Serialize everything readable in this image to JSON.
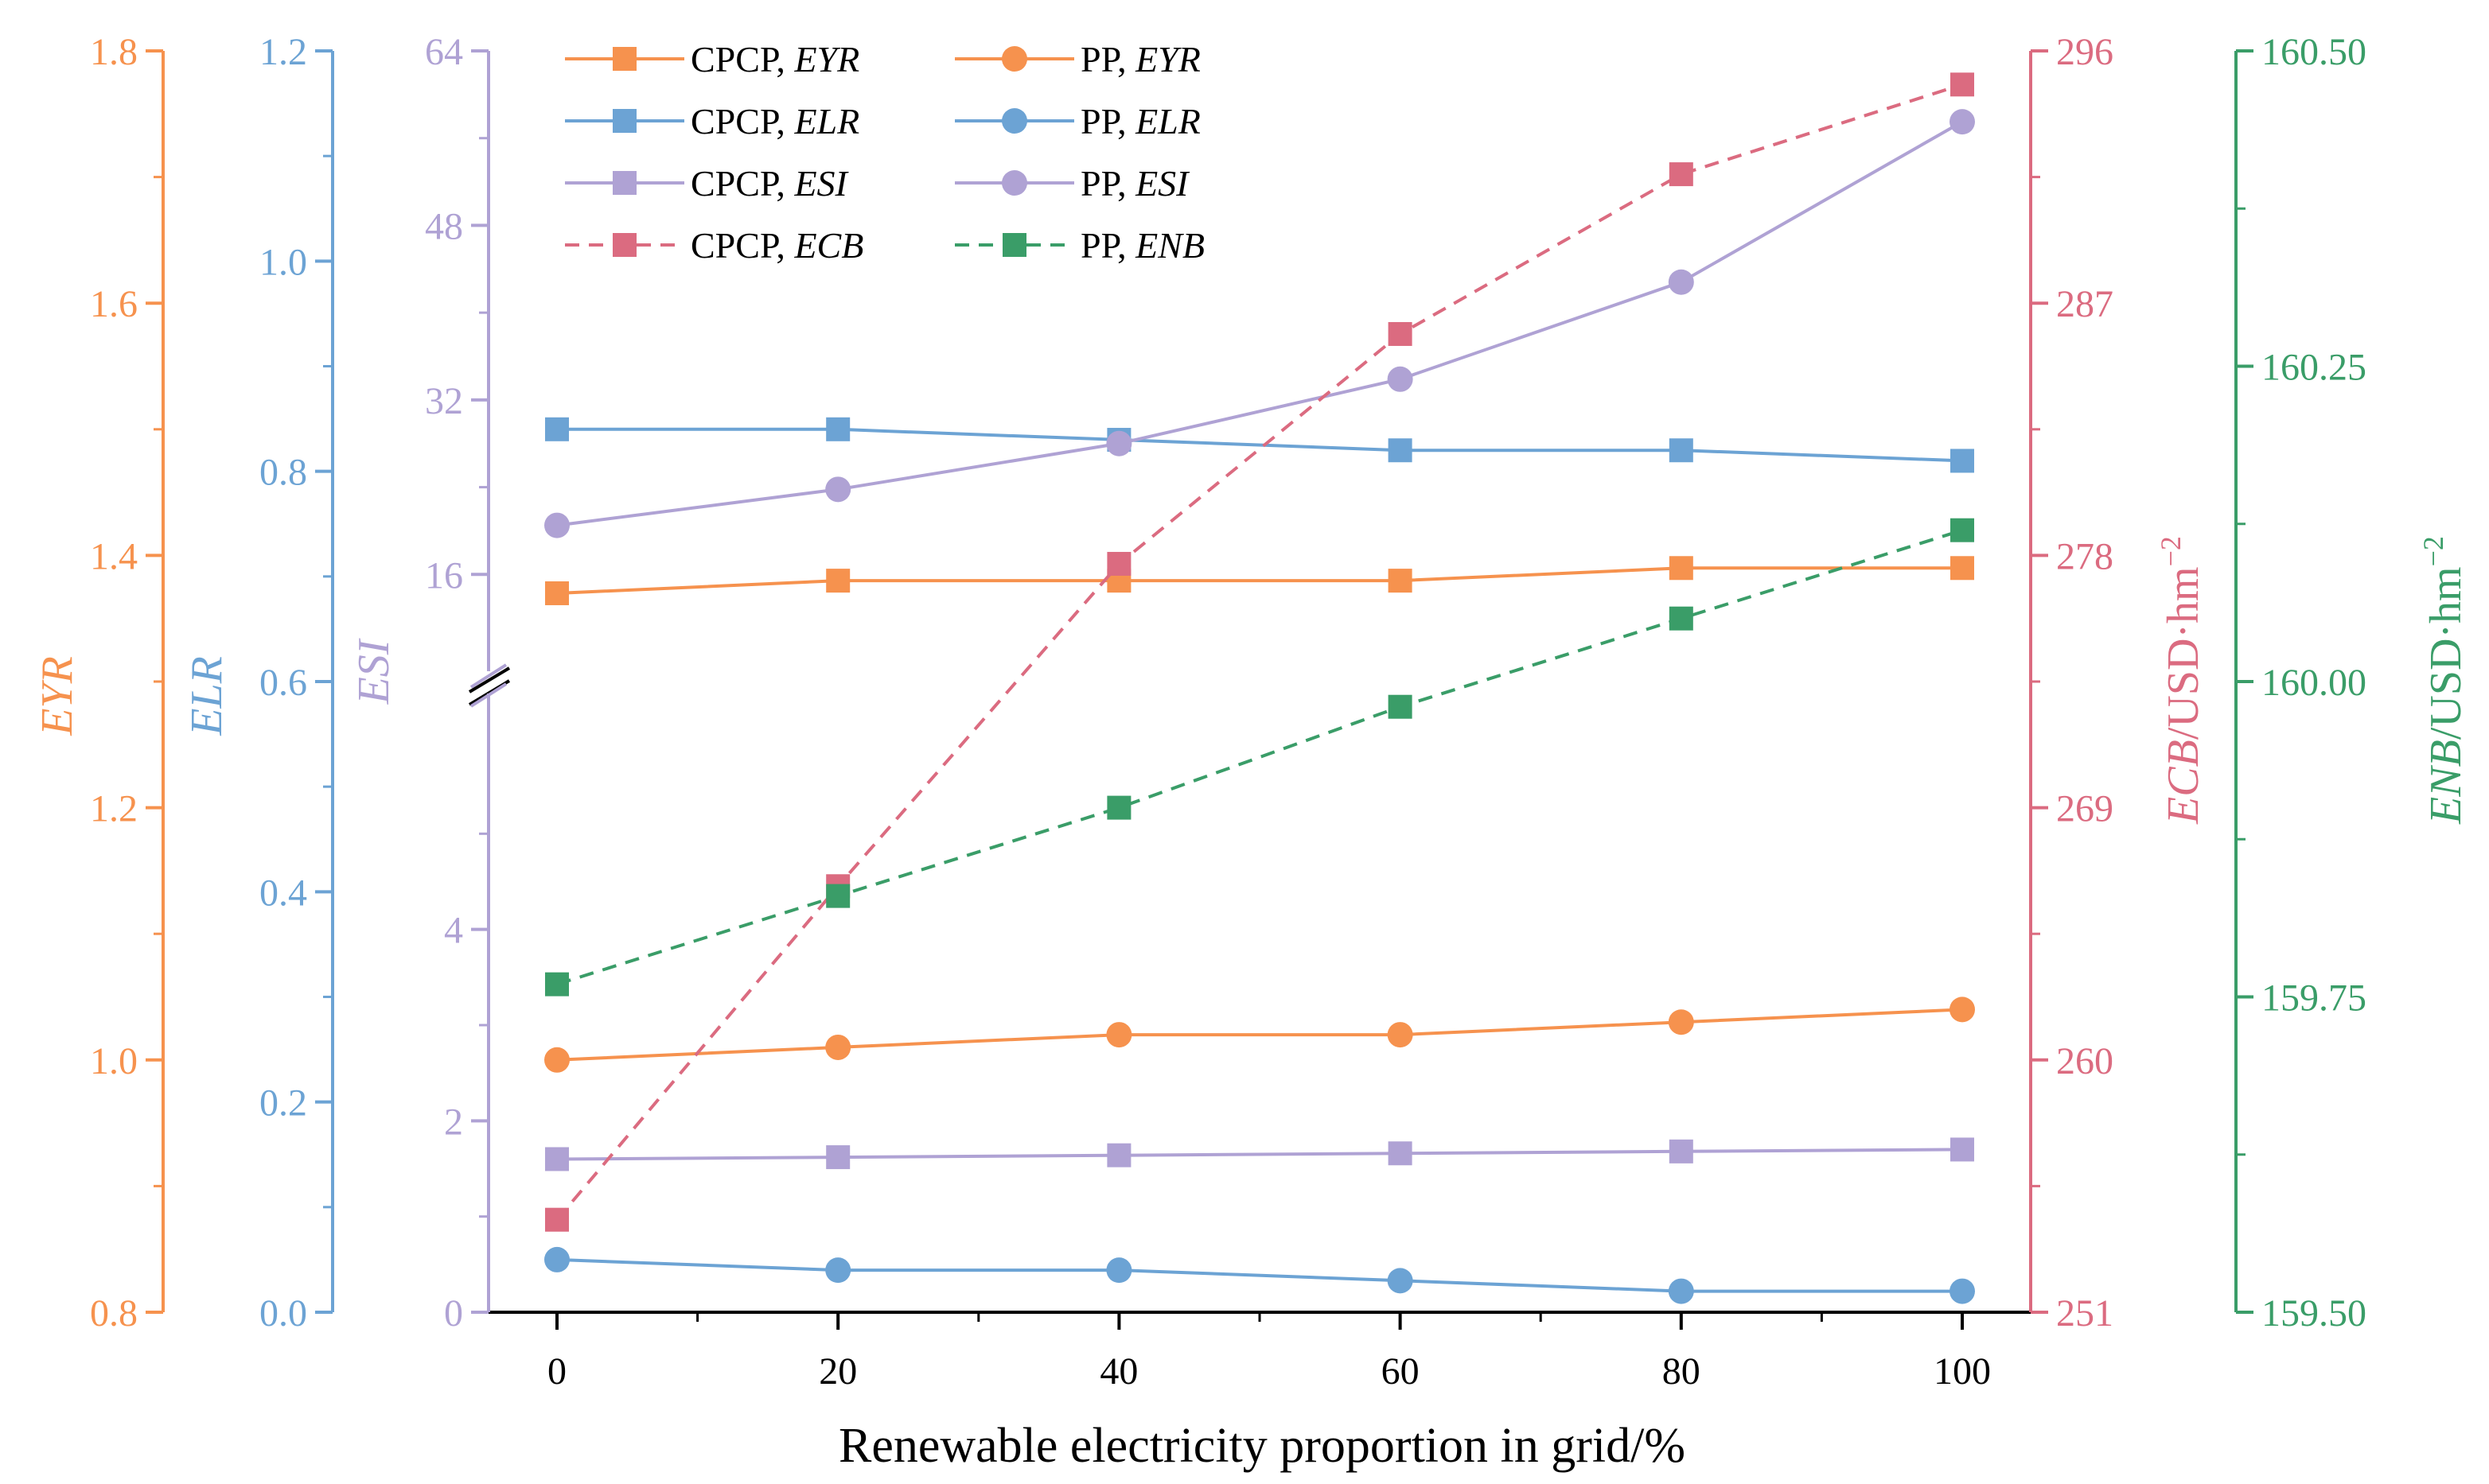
{
  "chart_data": {
    "type": "line",
    "x": [
      0,
      20,
      40,
      60,
      80,
      100
    ],
    "xlabel": "Renewable electricity proportion in grid/%",
    "xticks": [
      "0",
      "20",
      "40",
      "60",
      "80",
      "100"
    ],
    "colors": {
      "eyr": "#F6924E",
      "elr": "#6CA3D4",
      "esi": "#AFA2D4",
      "ecb": "#DB6B80",
      "enb": "#3A9D68",
      "frame": "#000000"
    },
    "axes": {
      "eyr": {
        "label": "EYR",
        "range": [
          0.8,
          1.8
        ],
        "ticks": [
          "0.8",
          "1.0",
          "1.2",
          "1.4",
          "1.6",
          "1.8"
        ]
      },
      "elr": {
        "label": "ELR",
        "range": [
          0.0,
          1.2
        ],
        "ticks": [
          "0.0",
          "0.2",
          "0.4",
          "0.6",
          "0.8",
          "1.0",
          "1.2"
        ]
      },
      "esi": {
        "label": "ESI",
        "broken": true,
        "lower_range": [
          0,
          6
        ],
        "upper_range": [
          8,
          64
        ],
        "ticks_lower": [
          "0",
          "2",
          "4"
        ],
        "ticks_upper": [
          "16",
          "32",
          "48",
          "64"
        ]
      },
      "ecb": {
        "label": "ECB",
        "label_suffix": "/USD·hm",
        "label_sup": "−2",
        "range": [
          251,
          296
        ],
        "ticks": [
          "251",
          "260",
          "269",
          "278",
          "287",
          "296"
        ]
      },
      "enb": {
        "label": "ENB",
        "label_suffix": "/USD·hm",
        "label_sup": "−2",
        "range": [
          159.5,
          160.5
        ],
        "ticks": [
          "159.50",
          "159.75",
          "160.00",
          "160.25",
          "160.50"
        ]
      }
    },
    "series": [
      {
        "name": "CPCP, EYR",
        "name_plain": "CPCP, ",
        "name_ital": "EYR",
        "axis": "eyr",
        "marker": "square",
        "dash": false,
        "values": [
          1.37,
          1.38,
          1.38,
          1.38,
          1.39,
          1.39
        ]
      },
      {
        "name": "PP, EYR",
        "name_plain": "PP, ",
        "name_ital": "EYR",
        "axis": "eyr",
        "marker": "circle",
        "dash": false,
        "values": [
          1.0,
          1.01,
          1.02,
          1.02,
          1.03,
          1.04
        ]
      },
      {
        "name": "CPCP, ELR",
        "name_plain": "CPCP, ",
        "name_ital": "ELR",
        "axis": "elr",
        "marker": "square",
        "dash": false,
        "values": [
          0.84,
          0.84,
          0.83,
          0.82,
          0.82,
          0.81
        ]
      },
      {
        "name": "PP, ELR",
        "name_plain": "PP, ",
        "name_ital": "ELR",
        "axis": "elr",
        "marker": "circle",
        "dash": false,
        "values": [
          0.05,
          0.04,
          0.04,
          0.03,
          0.02,
          0.02
        ]
      },
      {
        "name": "CPCP, ESI",
        "name_plain": "CPCP, ",
        "name_ital": "ESI",
        "axis": "esi",
        "marker": "square",
        "dash": false,
        "values": [
          1.6,
          1.62,
          1.64,
          1.66,
          1.68,
          1.7
        ]
      },
      {
        "name": "PP, ESI",
        "name_plain": "PP, ",
        "name_ital": "ESI",
        "axis": "esi",
        "marker": "circle",
        "dash": false,
        "values": [
          20.5,
          23.8,
          28,
          33.9,
          42.8,
          57.5
        ]
      },
      {
        "name": "CPCP, ECB",
        "name_plain": "CPCP, ",
        "name_ital": "ECB",
        "axis": "ecb",
        "marker": "square",
        "dash": true,
        "values": [
          254.3,
          266.2,
          277.7,
          285.9,
          291.6,
          294.8
        ]
      },
      {
        "name": "PP, ENB",
        "name_plain": "PP, ",
        "name_ital": "ENB",
        "axis": "enb",
        "marker": "square",
        "dash": true,
        "values": [
          159.76,
          159.83,
          159.9,
          159.98,
          160.05,
          160.12
        ]
      }
    ]
  }
}
